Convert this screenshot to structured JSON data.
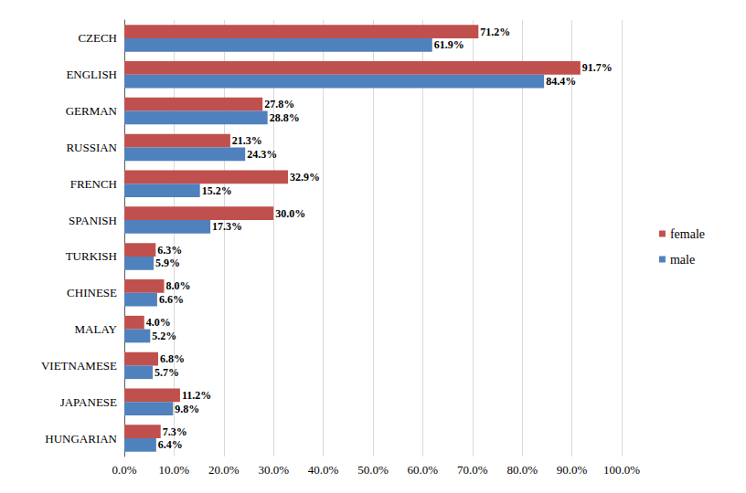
{
  "chart_data": {
    "type": "bar",
    "orientation": "horizontal",
    "categories": [
      "CZECH",
      "ENGLISH",
      "GERMAN",
      "RUSSIAN",
      "FRENCH",
      "SPANISH",
      "TURKISH",
      "CHINESE",
      "MALAY",
      "VIETNAMESE",
      "JAPANESE",
      "HUNGARIAN"
    ],
    "series": [
      {
        "name": "female",
        "color": "#c0504d",
        "values": [
          71.2,
          91.7,
          27.8,
          21.3,
          32.9,
          30.0,
          6.3,
          8.0,
          4.0,
          6.8,
          11.2,
          7.3
        ],
        "value_labels": [
          "71.2%",
          "91.7%",
          "27.8%",
          "21.3%",
          "32.9%",
          "30.0%",
          "6.3%",
          "8.0%",
          "4.0%",
          "6.8%",
          "11.2%",
          "7.3%"
        ]
      },
      {
        "name": "male",
        "color": "#4f81bd",
        "values": [
          61.9,
          84.4,
          28.8,
          24.3,
          15.2,
          17.3,
          5.9,
          6.6,
          5.2,
          5.7,
          9.8,
          6.4
        ],
        "value_labels": [
          "61.9%",
          "84.4%",
          "28.8%",
          "24.3%",
          "15.2%",
          "17.3%",
          "5.9%",
          "6.6%",
          "5.2%",
          "5.7%",
          "9.8%",
          "6.4%"
        ]
      }
    ],
    "xlim": [
      0,
      100
    ],
    "xticks": [
      {
        "value": 0,
        "label": "0.0%"
      },
      {
        "value": 10,
        "label": "10.0%"
      },
      {
        "value": 20,
        "label": "20.0%"
      },
      {
        "value": 30,
        "label": "30.0%"
      },
      {
        "value": 40,
        "label": "40.0%"
      },
      {
        "value": 50,
        "label": "50.0%"
      },
      {
        "value": 60,
        "label": "60.0%"
      },
      {
        "value": 70,
        "label": "70.0%"
      },
      {
        "value": 80,
        "label": "80.0%"
      },
      {
        "value": 90,
        "label": "90.0%"
      },
      {
        "value": 100,
        "label": "100.0%"
      }
    ],
    "grid": true,
    "legend": "right",
    "data_labels": true
  }
}
